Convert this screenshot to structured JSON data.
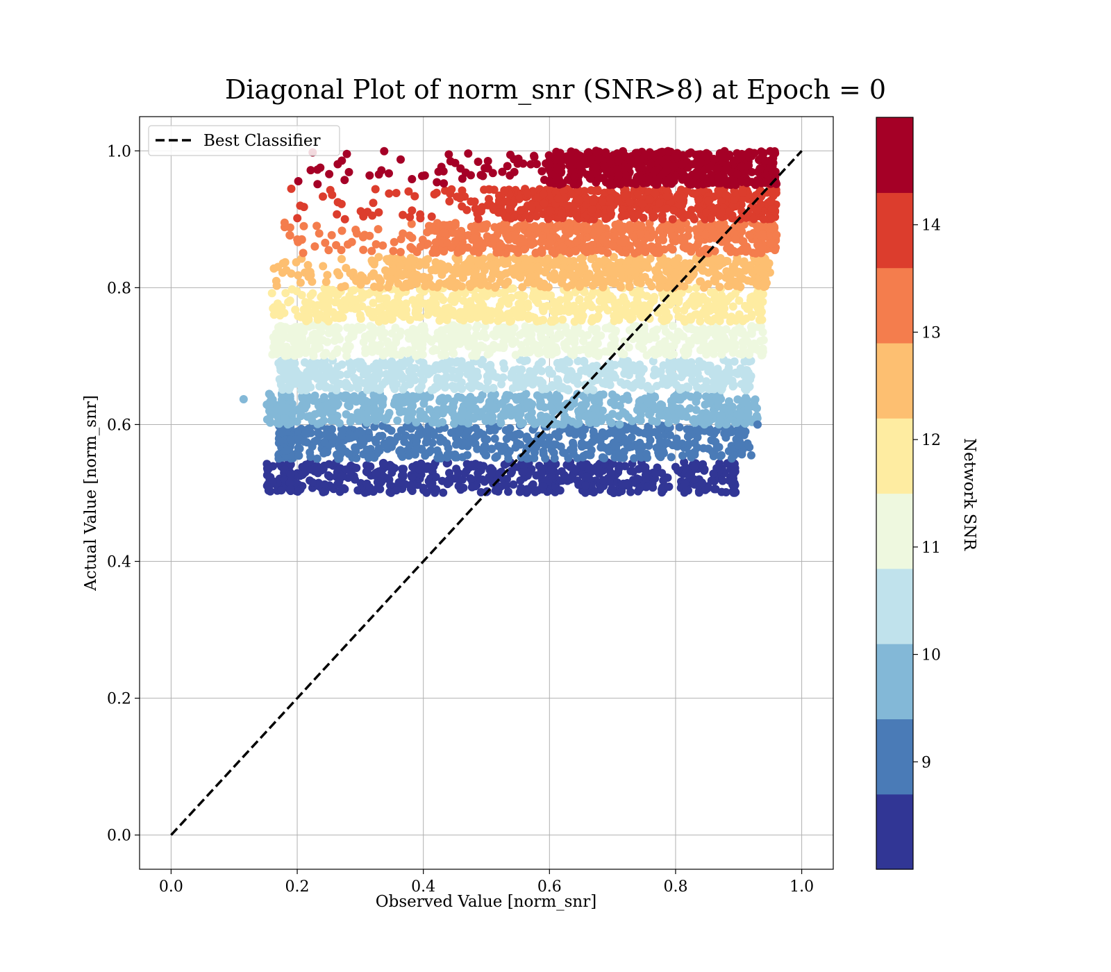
{
  "chart_data": {
    "type": "scatter",
    "title": "Diagonal Plot of norm_snr (SNR>8) at Epoch = 0",
    "xlabel": "Observed Value [norm_snr]",
    "ylabel": "Actual Value [norm_snr]",
    "xlim": [
      -0.05,
      1.05
    ],
    "ylim": [
      -0.05,
      1.05
    ],
    "x_ticks": [
      "0.0",
      "0.2",
      "0.4",
      "0.6",
      "0.8",
      "1.0"
    ],
    "y_ticks": [
      "0.0",
      "0.2",
      "0.4",
      "0.6",
      "0.8",
      "1.0"
    ],
    "grid": true,
    "legend": {
      "position": "top-left",
      "entries": [
        {
          "label": "Best Classifier",
          "style": "dashed",
          "color": "#000000"
        }
      ]
    },
    "reference_line": {
      "name": "Best Classifier",
      "x": [
        0.0,
        1.0
      ],
      "y": [
        0.0,
        1.0
      ]
    },
    "colorbar": {
      "label": "Network SNR",
      "range": [
        8.0,
        15.0
      ],
      "ticks": [
        "9",
        "10",
        "11",
        "12",
        "13",
        "14"
      ],
      "tick_values": [
        9,
        10,
        11,
        12,
        13,
        14
      ],
      "colors": [
        "#313695",
        "#4a7bb7",
        "#83b8d7",
        "#c0e2ec",
        "#eef8df",
        "#feeca1",
        "#fdbf71",
        "#f47d4d",
        "#dc3d2d",
        "#a50026"
      ]
    },
    "bands": [
      {
        "snr_range": [
          8.0,
          8.7
        ],
        "y_range": [
          0.5,
          0.545
        ],
        "x_core": [
          0.19,
          0.89
        ],
        "x_extent": [
          0.15,
          0.895
        ],
        "color": "#313695"
      },
      {
        "snr_range": [
          8.7,
          9.4
        ],
        "y_range": [
          0.55,
          0.6
        ],
        "x_core": [
          0.19,
          0.9
        ],
        "x_extent": [
          0.17,
          0.92
        ],
        "color": "#4a7bb7"
      },
      {
        "snr_range": [
          9.4,
          10.1
        ],
        "y_range": [
          0.6,
          0.645
        ],
        "x_core": [
          0.19,
          0.9
        ],
        "x_extent": [
          0.15,
          0.93
        ],
        "color": "#83b8d7"
      },
      {
        "snr_range": [
          10.1,
          10.8
        ],
        "y_range": [
          0.65,
          0.695
        ],
        "x_core": [
          0.19,
          0.91
        ],
        "x_extent": [
          0.17,
          0.92
        ],
        "color": "#c0e2ec"
      },
      {
        "snr_range": [
          10.8,
          11.5
        ],
        "y_range": [
          0.7,
          0.745
        ],
        "x_core": [
          0.2,
          0.92
        ],
        "x_extent": [
          0.16,
          0.94
        ],
        "color": "#eef8df"
      },
      {
        "snr_range": [
          11.5,
          12.2
        ],
        "y_range": [
          0.75,
          0.8
        ],
        "x_core": [
          0.25,
          0.93
        ],
        "x_extent": [
          0.16,
          0.94
        ],
        "color": "#feeca1"
      },
      {
        "snr_range": [
          12.2,
          12.9
        ],
        "y_range": [
          0.8,
          0.845
        ],
        "x_core": [
          0.35,
          0.94
        ],
        "x_extent": [
          0.16,
          0.95
        ],
        "color": "#fdbf71"
      },
      {
        "snr_range": [
          12.9,
          13.6
        ],
        "y_range": [
          0.85,
          0.895
        ],
        "x_core": [
          0.42,
          0.95
        ],
        "x_extent": [
          0.18,
          0.96
        ],
        "color": "#f47d4d"
      },
      {
        "snr_range": [
          13.6,
          14.3
        ],
        "y_range": [
          0.9,
          0.945
        ],
        "x_core": [
          0.52,
          0.95
        ],
        "x_extent": [
          0.19,
          0.96
        ],
        "color": "#dc3d2d"
      },
      {
        "snr_range": [
          14.3,
          15.0
        ],
        "y_range": [
          0.95,
          1.0
        ],
        "x_core": [
          0.6,
          0.95
        ],
        "x_extent": [
          0.2,
          0.96
        ],
        "color": "#a50026"
      }
    ],
    "outliers": [
      {
        "x": 0.115,
        "y": 0.637,
        "color": "#83b8d7"
      },
      {
        "x": 0.155,
        "y": 0.508,
        "color": "#313695"
      },
      {
        "x": 0.16,
        "y": 0.792,
        "color": "#feeca1"
      },
      {
        "x": 0.163,
        "y": 0.828,
        "color": "#fdbf71"
      },
      {
        "x": 0.18,
        "y": 0.895,
        "color": "#f47d4d"
      },
      {
        "x": 0.93,
        "y": 0.6,
        "color": "#4a7bb7"
      },
      {
        "x": 0.92,
        "y": 0.555,
        "color": "#4a7bb7"
      },
      {
        "x": 0.895,
        "y": 0.501,
        "color": "#313695"
      },
      {
        "x": 0.88,
        "y": 0.501,
        "color": "#313695"
      },
      {
        "x": 0.96,
        "y": 0.877,
        "color": "#f47d4d"
      }
    ]
  }
}
